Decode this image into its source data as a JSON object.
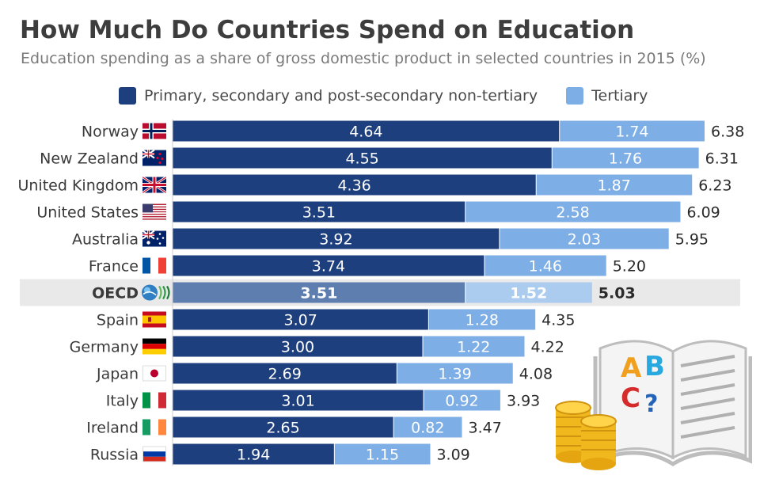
{
  "title": "How Much Do Countries Spend on Education",
  "subtitle": "Education spending as a share of gross domestic product in selected countries in 2015 (%)",
  "colors": {
    "primary": "#1e3f7d",
    "tertiary": "#7eaee6",
    "oecd_primary": "#5d7eae",
    "oecd_tertiary": "#abcbef",
    "highlight_row": "#e9e9e9"
  },
  "chart_data": {
    "type": "bar",
    "orientation": "horizontal",
    "stacked": true,
    "categories": [
      "Norway",
      "New Zealand",
      "United Kingdom",
      "United States",
      "Australia",
      "France",
      "OECD",
      "Spain",
      "Germany",
      "Japan",
      "Italy",
      "Ireland",
      "Russia"
    ],
    "flags": [
      "norway-flag",
      "new-zealand-flag",
      "uk-flag",
      "usa-flag",
      "australia-flag",
      "france-flag",
      "oecd-logo",
      "spain-flag",
      "germany-flag",
      "japan-flag",
      "italy-flag",
      "ireland-flag",
      "russia-flag"
    ],
    "series": [
      {
        "name": "Primary, secondary and post-secondary non-tertiary",
        "values": [
          4.64,
          4.55,
          4.36,
          3.51,
          3.92,
          3.74,
          3.51,
          3.07,
          3.0,
          2.69,
          3.01,
          2.65,
          1.94
        ]
      },
      {
        "name": "Tertiary",
        "values": [
          1.74,
          1.76,
          1.87,
          2.58,
          2.03,
          1.46,
          1.52,
          1.28,
          1.22,
          1.39,
          0.92,
          0.82,
          1.15
        ]
      }
    ],
    "value_labels": [
      [
        "4.64",
        "4.55",
        "4.36",
        "3.51",
        "3.92",
        "3.74",
        "3.51",
        "3.07",
        "3.00",
        "2.69",
        "3.01",
        "2.65",
        "1.94"
      ],
      [
        "1.74",
        "1.76",
        "1.87",
        "2.58",
        "2.03",
        "1.46",
        "1.52",
        "1.28",
        "1.22",
        "1.39",
        "0.92",
        "0.82",
        "1.15"
      ]
    ],
    "totals": [
      "6.38",
      "6.31",
      "6.23",
      "6.09",
      "5.95",
      "5.20",
      "5.03",
      "4.35",
      "4.22",
      "4.08",
      "3.93",
      "3.47",
      "3.09"
    ],
    "highlight": "OECD",
    "xlim": [
      0,
      6.38
    ],
    "grid": false,
    "legend_position": "top"
  },
  "decoration": {
    "book_letters": [
      "A",
      "B",
      "C",
      "?"
    ],
    "icons": [
      "open-book-icon",
      "coin-stacks-icon"
    ]
  }
}
